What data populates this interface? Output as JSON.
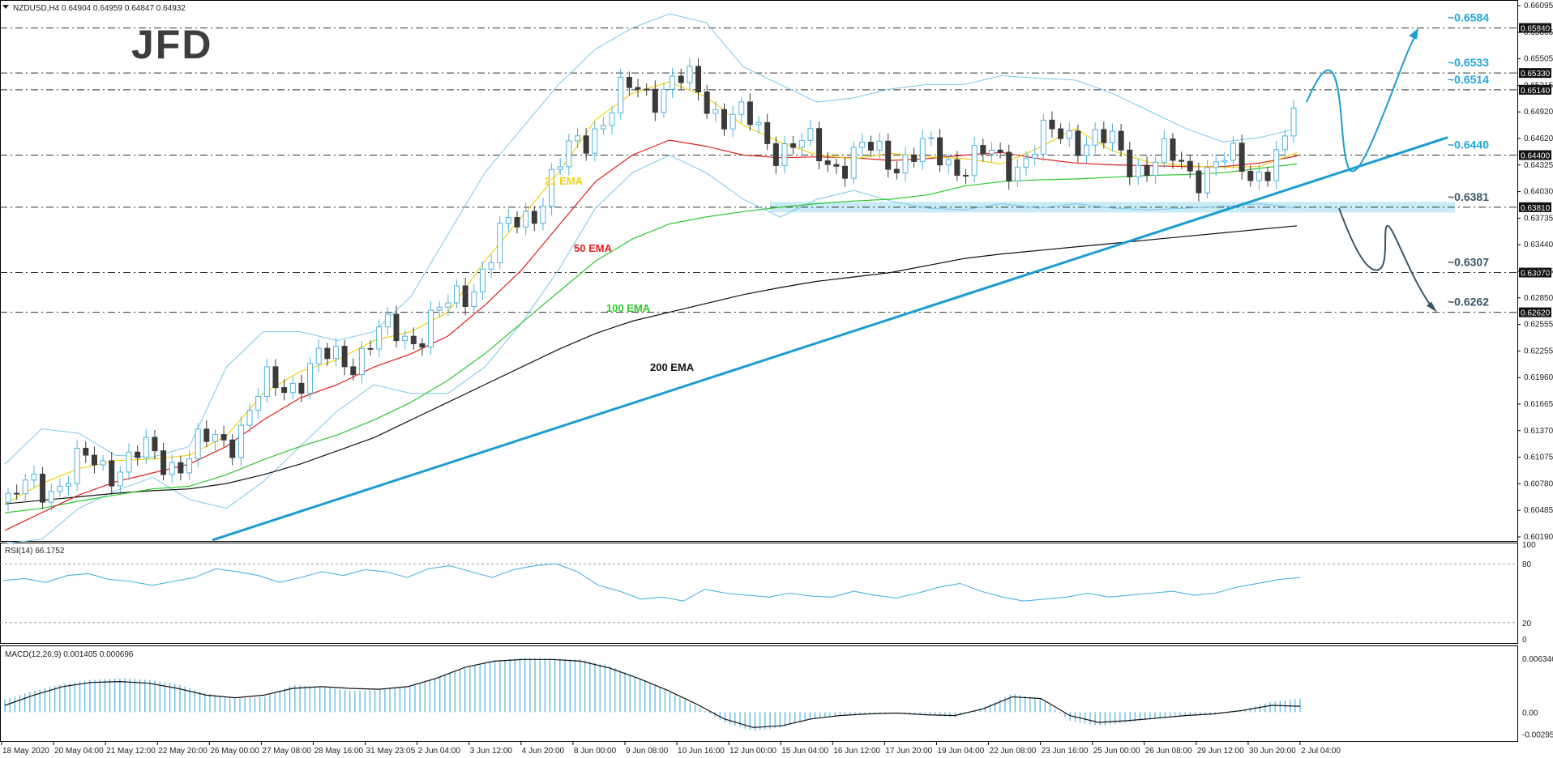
{
  "header": {
    "main": "NZDUSD,H4  0.64904 0.64959 0.64847 0.64932",
    "rsi": "RSI(14) 66.1752",
    "macd": "MACD(12,26,9) 0.001405 0.000696"
  },
  "logo": "JFD",
  "colors": {
    "bull": "#4fb2e0",
    "bear": "#3a3a3a",
    "ema21": "#f4d20f",
    "ema50": "#e31e1e",
    "ema100": "#2ec82e",
    "ema200": "#111111",
    "bollinger": "#7cc6ea",
    "trend": "#1c9ccf",
    "zone": "#bfe7f3",
    "projection_up": "#1c9ccf",
    "projection_down": "#3c5566",
    "level_label": "#23a6d8",
    "level_label_dark": "#3c5566"
  },
  "chart_data": {
    "type": "candlestick",
    "symbol": "NZDUSD",
    "timeframe": "H4",
    "current_price": 0.64932,
    "ohlc": {
      "open": 0.64904,
      "high": 0.64959,
      "low": 0.64847,
      "close": 0.64932
    },
    "ylim": [
      0.6003,
      0.6612
    ],
    "y_ticks": [
      "0.66095",
      "0.65805",
      "0.65505",
      "0.65215",
      "0.64920",
      "0.64620",
      "0.64325",
      "0.64030",
      "0.63735",
      "0.63440",
      "0.63145",
      "0.62850",
      "0.62555",
      "0.62255",
      "0.61960",
      "0.61665",
      "0.61370",
      "0.61075",
      "0.60780",
      "0.60485",
      "0.60190"
    ],
    "x_ticks": [
      "18 May 2020",
      "20 May 04:00",
      "21 May 12:00",
      "22 May 20:00",
      "26 May 00:00",
      "27 May 08:00",
      "28 May 16:00",
      "31 May 23:05",
      "2 Jun 04:00",
      "3 Jun 12:00",
      "4 Jun 20:00",
      "8 Jun 00:00",
      "9 Jun 08:00",
      "10 Jun 16:00",
      "12 Jun 00:00",
      "15 Jun 04:00",
      "16 Jun 12:00",
      "17 Jun 20:00",
      "19 Jun 04:00",
      "22 Jun 08:00",
      "23 Jun 16:00",
      "25 Jun 00:00",
      "26 Jun 08:00",
      "29 Jun 12:00",
      "30 Jun 20:00",
      "2 Jul 04:00"
    ],
    "levels": [
      {
        "value": 0.6584,
        "axis_label": "0.65840",
        "label": "~0.6584",
        "style": "cyan"
      },
      {
        "value": 0.6533,
        "axis_label": "0.65330",
        "label": "~0.6533",
        "style": "cyan"
      },
      {
        "value": 0.6514,
        "axis_label": "0.65140",
        "label": "~0.6514",
        "style": "cyan"
      },
      {
        "value": 0.644,
        "axis_label": "0.64400",
        "label": "~0.6440",
        "style": "cyan"
      },
      {
        "value": 0.6381,
        "axis_label": "0.63810",
        "label": "~0.6381",
        "style": "dark"
      },
      {
        "value": 0.6307,
        "axis_label": "0.63070",
        "label": "~0.6307",
        "style": "dark"
      },
      {
        "value": 0.6262,
        "axis_label": "0.62620",
        "label": "~0.6262",
        "style": "dark"
      }
    ],
    "ema_labels": [
      {
        "name": "21 EMA",
        "color": "ema21"
      },
      {
        "name": "50 EMA",
        "color": "ema50"
      },
      {
        "name": "100 EMA",
        "color": "ema100"
      },
      {
        "name": "200 EMA",
        "color": "ema200"
      }
    ],
    "ema21": [
      0.6045,
      0.6068,
      0.6085,
      0.6094,
      0.6096,
      0.61,
      0.6122,
      0.617,
      0.6195,
      0.6208,
      0.623,
      0.624,
      0.6262,
      0.632,
      0.637,
      0.642,
      0.648,
      0.651,
      0.6523,
      0.6506,
      0.6474,
      0.6455,
      0.644,
      0.6436,
      0.6442,
      0.6438,
      0.6436,
      0.643,
      0.6448,
      0.647,
      0.6445,
      0.6432,
      0.6428,
      0.6426,
      0.6427,
      0.6443
    ],
    "ema50": [
      0.6015,
      0.6035,
      0.6055,
      0.607,
      0.608,
      0.609,
      0.611,
      0.614,
      0.6165,
      0.618,
      0.62,
      0.6215,
      0.6235,
      0.627,
      0.631,
      0.636,
      0.641,
      0.644,
      0.6457,
      0.645,
      0.644,
      0.6437,
      0.6438,
      0.6437,
      0.6434,
      0.6436,
      0.644,
      0.6443,
      0.6436,
      0.6431,
      0.6429,
      0.6428,
      0.6427,
      0.6427,
      0.6431,
      0.6439
    ],
    "ema100": [
      0.6035,
      0.604,
      0.6048,
      0.6055,
      0.6062,
      0.6065,
      0.6078,
      0.6095,
      0.611,
      0.6123,
      0.614,
      0.616,
      0.6185,
      0.6215,
      0.625,
      0.6285,
      0.632,
      0.6345,
      0.6362,
      0.637,
      0.6376,
      0.6381,
      0.6385,
      0.6388,
      0.639,
      0.6395,
      0.6405,
      0.641,
      0.6412,
      0.6413,
      0.6415,
      0.6417,
      0.6418,
      0.642,
      0.6425,
      0.643
    ],
    "ema200": [
      0.6045,
      0.6049,
      0.6053,
      0.6057,
      0.606,
      0.6062,
      0.6068,
      0.6078,
      0.609,
      0.6105,
      0.612,
      0.614,
      0.616,
      0.618,
      0.62,
      0.622,
      0.6238,
      0.6252,
      0.6262,
      0.6272,
      0.6282,
      0.629,
      0.6297,
      0.6302,
      0.6307,
      0.6315,
      0.6323,
      0.6328,
      0.6332,
      0.6336,
      0.634,
      0.6344,
      0.6348,
      0.6352,
      0.6356,
      0.636
    ],
    "bb_upper": [
      0.609,
      0.613,
      0.6125,
      0.61,
      0.6098,
      0.611,
      0.62,
      0.624,
      0.624,
      0.623,
      0.624,
      0.628,
      0.635,
      0.642,
      0.647,
      0.652,
      0.656,
      0.6584,
      0.66,
      0.659,
      0.654,
      0.652,
      0.65,
      0.6505,
      0.6515,
      0.652,
      0.652,
      0.653,
      0.6527,
      0.6525,
      0.651,
      0.649,
      0.647,
      0.6455,
      0.646,
      0.647
    ],
    "bb_lower": [
      0.6,
      0.6005,
      0.604,
      0.606,
      0.6075,
      0.605,
      0.604,
      0.607,
      0.611,
      0.615,
      0.618,
      0.617,
      0.617,
      0.62,
      0.625,
      0.631,
      0.638,
      0.642,
      0.644,
      0.642,
      0.639,
      0.637,
      0.639,
      0.64,
      0.6388,
      0.638,
      0.6378,
      0.6385,
      0.638,
      0.6385,
      0.638,
      0.6378,
      0.638,
      0.6382,
      0.6385,
      0.638
    ],
    "rsi": {
      "value": 66.1752,
      "levels": [
        20,
        80
      ],
      "scale": [
        "100",
        "80",
        "20",
        "0"
      ],
      "series": [
        63,
        65,
        61,
        68,
        70,
        64,
        62,
        58,
        62,
        66,
        75,
        72,
        68,
        61,
        66,
        72,
        68,
        74,
        72,
        66,
        75,
        78,
        72,
        66,
        74,
        78,
        80,
        72,
        58,
        52,
        44,
        46,
        42,
        54,
        50,
        48,
        46,
        50,
        47,
        46,
        52,
        48,
        45,
        50,
        56,
        60,
        52,
        46,
        42,
        44,
        46,
        50,
        46,
        48,
        50,
        52,
        48,
        50,
        56,
        60,
        64,
        66
      ]
    },
    "macd": {
      "signal_value": 0.000696,
      "macd_value": 0.001405,
      "scale": [
        "0.006346",
        "0.00",
        "-0.002951"
      ],
      "hist": [
        0.0015,
        0.0025,
        0.0033,
        0.0038,
        0.004,
        0.0038,
        0.0033,
        0.0022,
        0.0016,
        0.0018,
        0.0032,
        0.003,
        0.0025,
        0.0026,
        0.003,
        0.004,
        0.0052,
        0.006,
        0.0064,
        0.0063,
        0.0062,
        0.0055,
        0.004,
        0.0025,
        0.0008,
        -0.0012,
        -0.0022,
        -0.0018,
        -0.0008,
        -0.0004,
        -0.0002,
        0.0,
        -0.0003,
        -0.0006,
        0.0006,
        0.0022,
        0.0016,
        -0.001,
        -0.0016,
        -0.0012,
        -0.0008,
        -0.0005,
        -0.0003,
        0.0003,
        0.0012,
        0.0016
      ],
      "signal": [
        0.0008,
        0.002,
        0.003,
        0.0035,
        0.0036,
        0.0034,
        0.0028,
        0.002,
        0.0017,
        0.002,
        0.0028,
        0.003,
        0.0028,
        0.0027,
        0.003,
        0.004,
        0.0053,
        0.006,
        0.0062,
        0.0062,
        0.006,
        0.0052,
        0.004,
        0.0026,
        0.001,
        -0.0008,
        -0.0018,
        -0.0016,
        -0.0008,
        -0.0004,
        -0.0002,
        -0.0001,
        -0.0003,
        -0.0004,
        0.0004,
        0.0018,
        0.0016,
        -0.0004,
        -0.0012,
        -0.001,
        -0.0007,
        -0.0004,
        -0.0002,
        0.0002,
        0.0008,
        0.0007
      ]
    }
  }
}
